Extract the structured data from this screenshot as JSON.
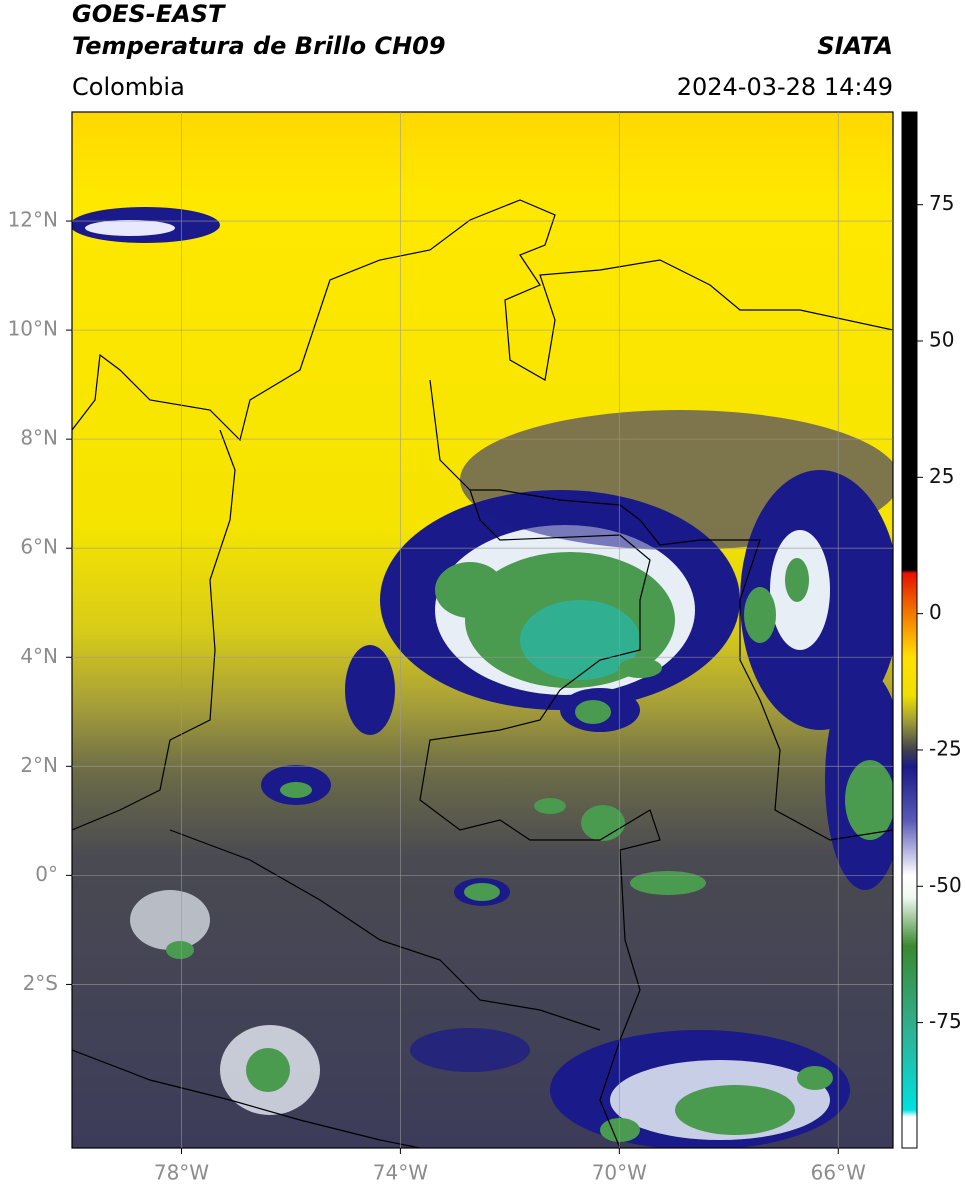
{
  "header": {
    "title_line1": "GOES-EAST",
    "title_line2": "Temperatura de Brillo CH09",
    "source": "SIATA",
    "region": "Colombia",
    "datetime": "2024-03-28 14:49"
  },
  "map": {
    "xlim": [
      -80,
      -65
    ],
    "ylim": [
      -5,
      14
    ],
    "xticks": [
      {
        "value": -78,
        "label": "78°W"
      },
      {
        "value": -74,
        "label": "74°W"
      },
      {
        "value": -70,
        "label": "70°W"
      },
      {
        "value": -66,
        "label": "66°W"
      }
    ],
    "yticks": [
      {
        "value": -2,
        "label": "2°S"
      },
      {
        "value": 0,
        "label": "0°"
      },
      {
        "value": 2,
        "label": "2°N"
      },
      {
        "value": 4,
        "label": "4°N"
      },
      {
        "value": 6,
        "label": "6°N"
      },
      {
        "value": 8,
        "label": "8°N"
      },
      {
        "value": 10,
        "label": "10°N"
      },
      {
        "value": 12,
        "label": "12°N"
      }
    ]
  },
  "colorbar": {
    "lim": [
      -98,
      92
    ],
    "ticks": [
      75,
      50,
      25,
      0,
      -25,
      -50,
      -75
    ]
  }
}
